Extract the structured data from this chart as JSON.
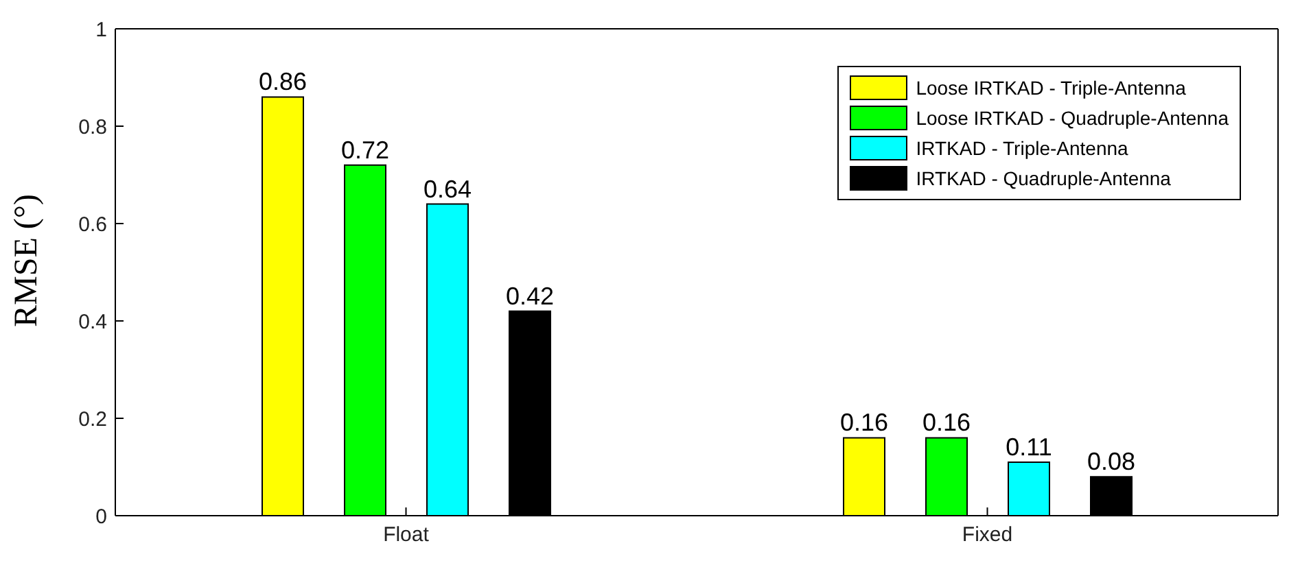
{
  "chart_data": {
    "type": "bar",
    "ylabel": "RMSE (°)",
    "categories": [
      "Float",
      "Fixed"
    ],
    "series": [
      {
        "name": "Loose IRTKAD - Triple-Antenna",
        "color": "#ffff00",
        "values": [
          0.86,
          0.16
        ]
      },
      {
        "name": "Loose IRTKAD - Quadruple-Antenna",
        "color": "#00ff00",
        "values": [
          0.72,
          0.16
        ]
      },
      {
        "name": "IRTKAD - Triple-Antenna",
        "color": "#00ffff",
        "values": [
          0.64,
          0.11
        ]
      },
      {
        "name": "IRTKAD - Quadruple-Antenna",
        "color": "#000000",
        "values": [
          0.42,
          0.08
        ]
      }
    ],
    "ylim": [
      0,
      1
    ],
    "yticks": [
      0,
      0.2,
      0.4,
      0.6,
      0.8,
      1
    ],
    "data_labels": true,
    "legend": "top right",
    "grid": false
  }
}
